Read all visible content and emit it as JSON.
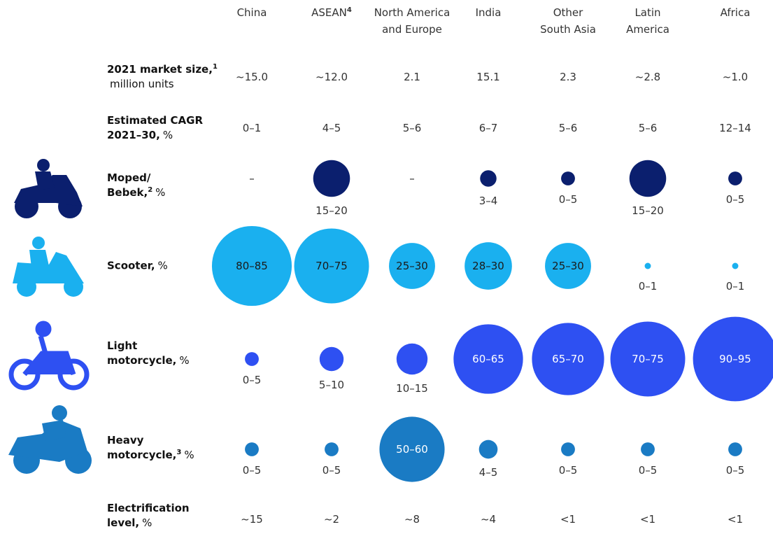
{
  "chart_data": {
    "type": "bubble-matrix",
    "columns": [
      {
        "lines": [
          "China"
        ]
      },
      {
        "lines": [
          "ASEAN"
        ],
        "sup": "4"
      },
      {
        "lines": [
          "North America",
          "and Europe"
        ]
      },
      {
        "lines": [
          "India"
        ]
      },
      {
        "lines": [
          "Other",
          "South Asia"
        ]
      },
      {
        "lines": [
          "Latin",
          "America"
        ]
      },
      {
        "lines": [
          "Africa"
        ]
      }
    ],
    "rows": [
      {
        "kind": "text",
        "label": [
          [
            {
              "text": "2021 market size,",
              "style": "bold"
            },
            {
              "text": "1",
              "style": "sup"
            }
          ],
          [
            {
              "text": "million units",
              "style": "normal"
            }
          ]
        ],
        "cells": [
          "~15.0",
          "~12.0",
          "2.1",
          "15.1",
          "2.3",
          "~2.8",
          "~1.0"
        ]
      },
      {
        "kind": "text",
        "label": [
          [
            {
              "text": "Estimated CAGR",
              "style": "bold"
            }
          ],
          [
            {
              "text": "2021–30,",
              "style": "bold"
            },
            {
              "text": "%",
              "style": "normal"
            }
          ]
        ],
        "cells": [
          "0–1",
          "4–5",
          "5–6",
          "6–7",
          "5–6",
          "5–6",
          "12–14"
        ]
      },
      {
        "kind": "bubble",
        "color": "#0b1f6e",
        "label_color": "#ffffff",
        "label": [
          [
            {
              "text": "Moped/",
              "style": "bold"
            }
          ],
          [
            {
              "text": "Bebek,",
              "style": "bold"
            },
            {
              "text": "2",
              "style": "sup"
            },
            {
              "text": "%",
              "style": "normal"
            }
          ]
        ],
        "values": [
          null,
          17.5,
          null,
          3.5,
          2.5,
          17.5,
          2.5
        ],
        "value_labels": [
          "–",
          "15–20",
          "–",
          "3–4",
          "0–5",
          "15–20",
          "0–5"
        ]
      },
      {
        "kind": "bubble",
        "color": "#1ab0ef",
        "label_color": "#1a1a1a",
        "label": [
          [
            {
              "text": "Scooter,",
              "style": "bold"
            },
            {
              "text": "%",
              "style": "normal"
            }
          ]
        ],
        "values": [
          82.5,
          72.5,
          27.5,
          29,
          27.5,
          0.5,
          0.5
        ],
        "value_labels": [
          "80–85",
          "70–75",
          "25–30",
          "28–30",
          "25–30",
          "0–1",
          "0–1"
        ]
      },
      {
        "kind": "bubble",
        "color": "#2e50f2",
        "label_color": "#ffffff",
        "label": [
          [
            {
              "text": "Light",
              "style": "bold"
            }
          ],
          [
            {
              "text": "motorcycle,",
              "style": "bold"
            },
            {
              "text": "%",
              "style": "normal"
            }
          ]
        ],
        "values": [
          2.5,
          7.5,
          12.5,
          62.5,
          67.5,
          72.5,
          92.5
        ],
        "value_labels": [
          "0–5",
          "5–10",
          "10–15",
          "60–65",
          "65–70",
          "70–75",
          "90–95"
        ]
      },
      {
        "kind": "bubble",
        "color": "#1a7bc4",
        "label_color": "#ffffff",
        "label": [
          [
            {
              "text": "Heavy",
              "style": "bold"
            }
          ],
          [
            {
              "text": "motorcycle,",
              "style": "bold"
            },
            {
              "text": "3",
              "style": "sup"
            },
            {
              "text": "%",
              "style": "normal"
            }
          ]
        ],
        "values": [
          2.5,
          2.5,
          55,
          4.5,
          2.5,
          2.5,
          2.5
        ],
        "value_labels": [
          "0–5",
          "0–5",
          "50–60",
          "4–5",
          "0–5",
          "0–5",
          "0–5"
        ]
      },
      {
        "kind": "text",
        "label": [
          [
            {
              "text": "Electrification",
              "style": "bold"
            }
          ],
          [
            {
              "text": "level,",
              "style": "bold"
            },
            {
              "text": "%",
              "style": "normal"
            }
          ]
        ],
        "cells": [
          "~15",
          "~2",
          "~8",
          "~4",
          "<1",
          "<1",
          "<1"
        ]
      }
    ]
  }
}
